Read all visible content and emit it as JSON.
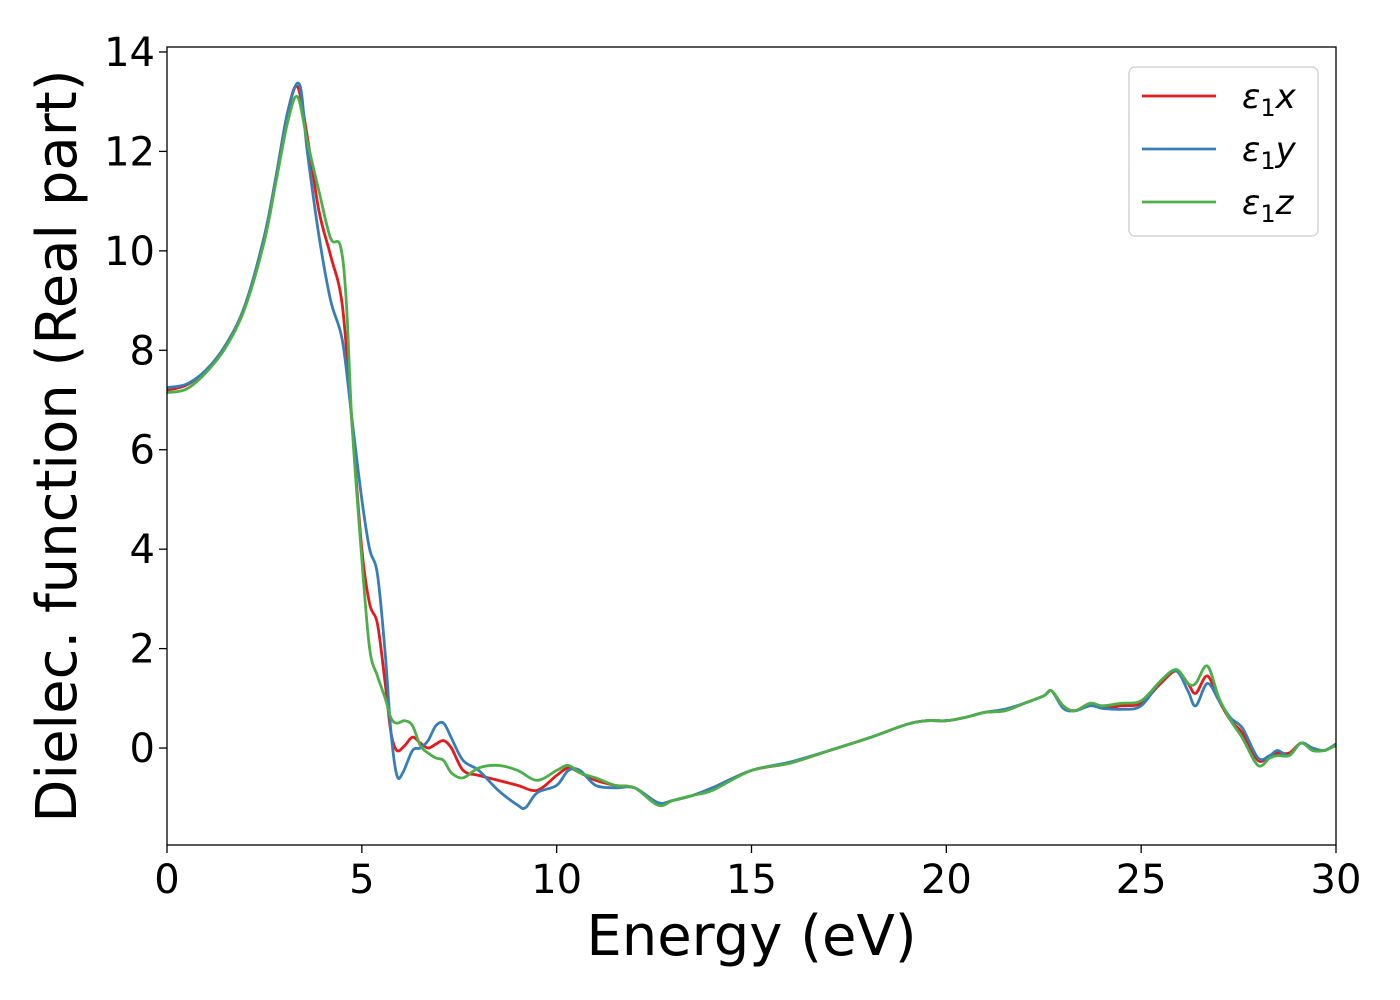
{
  "chart_data": {
    "type": "line",
    "xlabel": "Energy (eV)",
    "ylabel": "Dielec. function (Real part)",
    "xlim": [
      0,
      30
    ],
    "ylim": [
      -1.95,
      14.1
    ],
    "xticks": [
      0,
      5,
      10,
      15,
      20,
      25,
      30
    ],
    "yticks": [
      0,
      2,
      4,
      6,
      8,
      10,
      12,
      14
    ],
    "grid": false,
    "legend_position": "top-right",
    "series": [
      {
        "name": "ε1x",
        "legend": {
          "symbol": "ε",
          "sub": "1",
          "var": "x"
        },
        "color": "#e41a1c",
        "x": [
          0,
          0.5,
          1.0,
          1.5,
          2.0,
          2.5,
          2.8,
          3.1,
          3.35,
          3.6,
          3.9,
          4.2,
          4.5,
          4.75,
          5.0,
          5.2,
          5.4,
          5.6,
          5.75,
          5.9,
          6.1,
          6.3,
          6.5,
          6.7,
          6.9,
          7.1,
          7.3,
          7.6,
          8.0,
          8.5,
          9.0,
          9.5,
          10.0,
          10.3,
          10.6,
          11.0,
          11.5,
          12.0,
          12.6,
          13.0,
          13.5,
          14.0,
          15.0,
          16.0,
          17.0,
          18.0,
          19.0,
          19.5,
          20.0,
          20.5,
          21.0,
          21.5,
          22.0,
          22.5,
          22.7,
          23.0,
          23.3,
          23.7,
          24.0,
          24.5,
          25.0,
          25.5,
          25.9,
          26.2,
          26.4,
          26.7,
          27.0,
          27.3,
          27.6,
          28.0,
          28.3,
          28.5,
          28.8,
          29.1,
          29.4,
          29.7,
          30.0
        ],
        "y": [
          7.2,
          7.3,
          7.6,
          8.1,
          8.9,
          10.3,
          11.5,
          12.8,
          13.3,
          12.3,
          10.8,
          9.9,
          8.9,
          6.5,
          4.0,
          2.9,
          2.5,
          1.3,
          0.3,
          -0.05,
          0.05,
          0.22,
          0.1,
          0.0,
          0.08,
          0.15,
          0.0,
          -0.45,
          -0.55,
          -0.65,
          -0.75,
          -0.85,
          -0.55,
          -0.4,
          -0.5,
          -0.65,
          -0.75,
          -0.8,
          -1.1,
          -1.05,
          -0.95,
          -0.8,
          -0.45,
          -0.3,
          -0.05,
          0.2,
          0.48,
          0.55,
          0.55,
          0.62,
          0.72,
          0.75,
          0.9,
          1.05,
          1.15,
          0.85,
          0.75,
          0.9,
          0.8,
          0.85,
          0.9,
          1.3,
          1.55,
          1.3,
          1.1,
          1.45,
          0.95,
          0.55,
          0.3,
          -0.25,
          -0.15,
          -0.1,
          -0.1,
          0.1,
          0.0,
          -0.05,
          0.08
        ]
      },
      {
        "name": "ε1y",
        "legend": {
          "symbol": "ε",
          "sub": "1",
          "var": "y"
        },
        "color": "#377eb8",
        "x": [
          0,
          0.5,
          1.0,
          1.5,
          2.0,
          2.5,
          2.8,
          3.1,
          3.4,
          3.6,
          3.9,
          4.2,
          4.5,
          4.75,
          5.0,
          5.2,
          5.4,
          5.6,
          5.75,
          5.9,
          6.05,
          6.3,
          6.5,
          6.7,
          6.9,
          7.1,
          7.3,
          7.6,
          8.0,
          8.5,
          9.0,
          9.2,
          9.5,
          10.0,
          10.3,
          10.6,
          11.0,
          11.5,
          12.0,
          12.6,
          13.0,
          13.5,
          14.0,
          15.0,
          16.0,
          17.0,
          18.0,
          19.0,
          19.5,
          20.0,
          20.5,
          21.0,
          21.5,
          22.0,
          22.5,
          22.7,
          23.0,
          23.3,
          23.7,
          24.0,
          24.5,
          25.0,
          25.5,
          25.9,
          26.2,
          26.4,
          26.7,
          27.0,
          27.3,
          27.6,
          28.0,
          28.3,
          28.5,
          28.8,
          29.1,
          29.4,
          29.7,
          30.0
        ],
        "y": [
          7.25,
          7.32,
          7.6,
          8.1,
          8.9,
          10.3,
          11.5,
          12.8,
          13.35,
          12.0,
          10.3,
          9.0,
          8.2,
          6.6,
          5.0,
          4.0,
          3.5,
          1.9,
          0.3,
          -0.55,
          -0.5,
          -0.05,
          0.0,
          0.15,
          0.45,
          0.5,
          0.2,
          -0.25,
          -0.45,
          -0.85,
          -1.15,
          -1.2,
          -0.9,
          -0.75,
          -0.45,
          -0.45,
          -0.75,
          -0.8,
          -0.8,
          -1.1,
          -1.05,
          -0.95,
          -0.8,
          -0.45,
          -0.28,
          -0.05,
          0.2,
          0.48,
          0.55,
          0.55,
          0.62,
          0.72,
          0.78,
          0.9,
          1.05,
          1.15,
          0.8,
          0.75,
          0.85,
          0.8,
          0.78,
          0.85,
          1.35,
          1.55,
          1.15,
          0.85,
          1.3,
          0.95,
          0.6,
          0.4,
          -0.2,
          -0.15,
          -0.05,
          -0.15,
          0.1,
          0.0,
          -0.05,
          0.08
        ]
      },
      {
        "name": "ε1z",
        "legend": {
          "symbol": "ε",
          "sub": "1",
          "var": "z"
        },
        "color": "#4daf4a",
        "x": [
          0,
          0.5,
          1.0,
          1.5,
          2.0,
          2.5,
          2.8,
          3.1,
          3.35,
          3.6,
          3.9,
          4.2,
          4.45,
          4.6,
          4.75,
          5.0,
          5.2,
          5.4,
          5.6,
          5.75,
          5.9,
          6.1,
          6.3,
          6.5,
          6.7,
          6.9,
          7.1,
          7.3,
          7.6,
          8.0,
          8.5,
          9.0,
          9.5,
          10.0,
          10.3,
          10.6,
          11.0,
          11.5,
          12.0,
          12.6,
          13.0,
          13.5,
          14.0,
          15.0,
          16.0,
          17.0,
          18.0,
          19.0,
          19.5,
          20.0,
          20.5,
          21.0,
          21.5,
          22.0,
          22.5,
          22.7,
          23.0,
          23.3,
          23.7,
          24.0,
          24.5,
          25.0,
          25.5,
          25.9,
          26.2,
          26.4,
          26.7,
          27.0,
          27.3,
          27.6,
          28.0,
          28.3,
          28.5,
          28.8,
          29.1,
          29.4,
          29.7,
          30.0
        ],
        "y": [
          7.15,
          7.22,
          7.55,
          8.05,
          8.85,
          10.2,
          11.4,
          12.6,
          13.1,
          12.2,
          11.2,
          10.25,
          10.1,
          9.0,
          6.5,
          3.8,
          2.0,
          1.45,
          1.0,
          0.6,
          0.5,
          0.55,
          0.45,
          0.05,
          -0.1,
          -0.2,
          -0.25,
          -0.5,
          -0.6,
          -0.4,
          -0.35,
          -0.45,
          -0.65,
          -0.45,
          -0.35,
          -0.5,
          -0.6,
          -0.75,
          -0.8,
          -1.15,
          -1.05,
          -0.95,
          -0.85,
          -0.45,
          -0.3,
          -0.05,
          0.2,
          0.48,
          0.55,
          0.55,
          0.62,
          0.72,
          0.75,
          0.9,
          1.05,
          1.15,
          0.85,
          0.75,
          0.9,
          0.85,
          0.9,
          0.95,
          1.35,
          1.58,
          1.3,
          1.3,
          1.65,
          1.0,
          0.55,
          0.2,
          -0.35,
          -0.2,
          -0.15,
          -0.15,
          0.1,
          -0.05,
          -0.05,
          0.05
        ]
      }
    ]
  }
}
